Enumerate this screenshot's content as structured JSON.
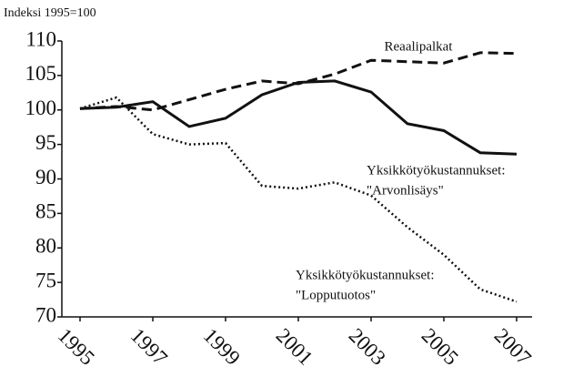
{
  "chart_data": {
    "type": "line",
    "subtitle": "Indeksi 1995=100",
    "x": [
      1995,
      1996,
      1997,
      1998,
      1999,
      2000,
      2001,
      2002,
      2003,
      2004,
      2005,
      2006,
      2007
    ],
    "xlim": [
      1995,
      2007
    ],
    "xticks": [
      1995,
      1997,
      1999,
      2001,
      2003,
      2005,
      2007
    ],
    "ylim": [
      70,
      110
    ],
    "yticks": [
      70,
      75,
      80,
      85,
      90,
      95,
      100,
      105,
      110
    ],
    "series": [
      {
        "label": [
          "Reaalipalkat"
        ],
        "color": "#111111",
        "style": "dashed",
        "values": [
          100.2,
          100.5,
          100.0,
          101.5,
          103.0,
          104.2,
          103.8,
          105.2,
          107.2,
          107.0,
          106.8,
          108.3,
          108.2
        ]
      },
      {
        "label": [
          "Yksikkötyökustannukset:",
          "\"Arvonlisäys\""
        ],
        "color": "#111111",
        "style": "solid",
        "values": [
          100.2,
          100.4,
          101.2,
          97.6,
          98.8,
          102.2,
          104.0,
          104.2,
          102.6,
          98.0,
          97.0,
          93.8,
          93.6
        ]
      },
      {
        "label": [
          "Yksikkötyökustannukset:",
          "\"Lopputuotos\""
        ],
        "color": "#111111",
        "style": "dotted",
        "values": [
          100.2,
          101.8,
          96.5,
          95.0,
          95.2,
          89.0,
          88.6,
          89.5,
          87.6,
          83.0,
          79.0,
          74.0,
          72.2
        ]
      }
    ]
  }
}
